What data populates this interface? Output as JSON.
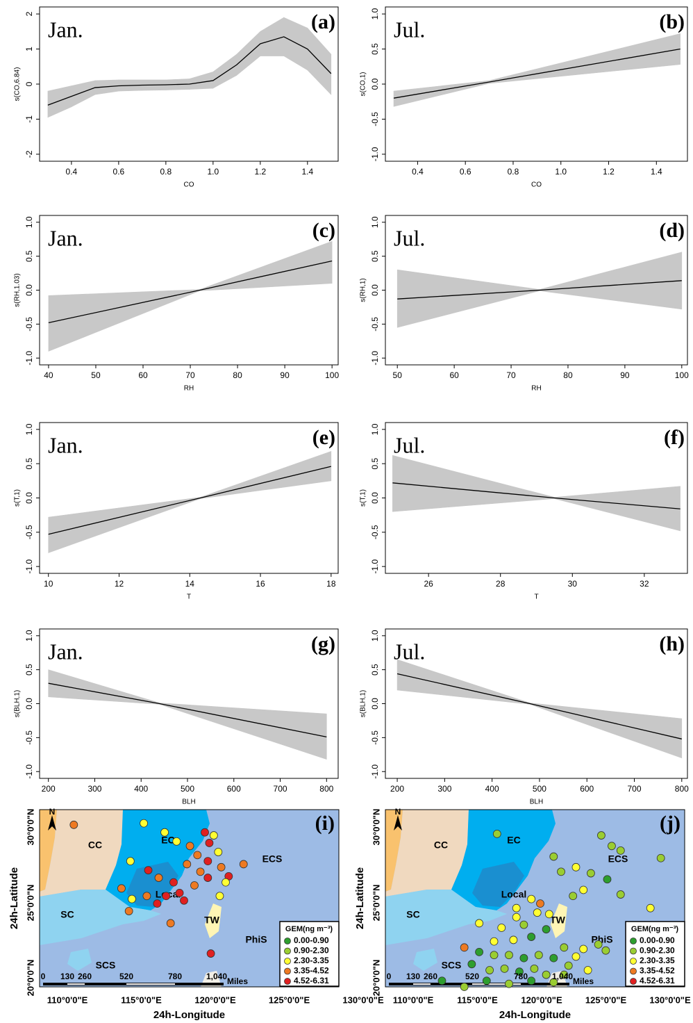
{
  "chart_data": [
    {
      "type": "gam",
      "label": "(a)",
      "month": "Jan.",
      "x_label": "CO",
      "y_label": "s(CO,6.84)",
      "line_color": "#000000",
      "band_color": "#c8c8c8",
      "x": [
        0.3,
        0.4,
        0.5,
        0.6,
        0.7,
        0.8,
        0.9,
        1.0,
        1.1,
        1.2,
        1.3,
        1.4,
        1.5
      ],
      "fit": [
        -0.6,
        -0.35,
        -0.1,
        -0.05,
        -0.03,
        -0.02,
        0,
        0.1,
        0.55,
        1.15,
        1.35,
        1.0,
        0.3
      ],
      "upper": [
        -0.2,
        -0.05,
        0.1,
        0.12,
        0.12,
        0.12,
        0.15,
        0.35,
        0.85,
        1.5,
        1.9,
        1.6,
        0.85
      ],
      "lower": [
        -0.95,
        -0.65,
        -0.3,
        -0.2,
        -0.18,
        -0.17,
        -0.15,
        -0.12,
        0.25,
        0.8,
        0.8,
        0.4,
        -0.3
      ],
      "xlim": [
        0.265,
        1.53
      ],
      "ylim": [
        -2.2,
        2.2
      ],
      "xticks": [
        0.4,
        0.6,
        0.8,
        {
          "value": 1,
          "label": "1.0"
        },
        1.2,
        1.4
      ],
      "yticks": [
        -2,
        -1,
        0,
        1,
        2
      ]
    },
    {
      "type": "gam",
      "label": "(b)",
      "month": "Jul.",
      "x_label": "CO",
      "y_label": "s(CO,1)",
      "line_color": "#000000",
      "band_color": "#c8c8c8",
      "x": [
        0.3,
        0.7,
        1.5
      ],
      "fit": [
        -0.2,
        0.03,
        0.5
      ],
      "upper": [
        -0.1,
        0.05,
        0.72
      ],
      "lower": [
        -0.32,
        0.01,
        0.28
      ],
      "xlim": [
        0.265,
        1.53
      ],
      "ylim": [
        -1.1,
        1.1
      ],
      "xticks": [
        0.4,
        0.6,
        0.8,
        {
          "value": 1,
          "label": "1.0"
        },
        1.2,
        1.4
      ],
      "yticks": [
        {
          "value": -1,
          "label": "-1.0"
        },
        -0.5,
        {
          "value": 0,
          "label": "0.0"
        },
        0.5,
        {
          "value": 1,
          "label": "1.0"
        }
      ]
    },
    {
      "type": "gam",
      "label": "(c)",
      "month": "Jan.",
      "x_label": "RH",
      "y_label": "s(RH,1.03)",
      "line_color": "#000000",
      "band_color": "#c8c8c8",
      "x": [
        40,
        72,
        100
      ],
      "fit": [
        -0.48,
        0,
        0.43
      ],
      "upper": [
        -0.08,
        0.01,
        0.72
      ],
      "lower": [
        -0.9,
        -0.01,
        0.1
      ],
      "xlim": [
        38.1,
        101.3
      ],
      "ylim": [
        -1.1,
        1.1
      ],
      "xticks": [
        40,
        50,
        60,
        70,
        80,
        90,
        100
      ],
      "yticks": [
        {
          "value": -1,
          "label": "-1.0"
        },
        -0.5,
        {
          "value": 0,
          "label": "0.0"
        },
        0.5,
        {
          "value": 1,
          "label": "1.0"
        }
      ]
    },
    {
      "type": "gam",
      "label": "(d)",
      "month": "Jul.",
      "x_label": "RH",
      "y_label": "s(RH,1)",
      "line_color": "#000000",
      "band_color": "#c8c8c8",
      "x": [
        50,
        75,
        100
      ],
      "fit": [
        -0.13,
        0,
        0.14
      ],
      "upper": [
        0.3,
        0.01,
        0.56
      ],
      "lower": [
        -0.55,
        -0.01,
        -0.28
      ],
      "xlim": [
        47.9,
        101
      ],
      "ylim": [
        -1.1,
        1.1
      ],
      "xticks": [
        50,
        60,
        70,
        80,
        90,
        100
      ],
      "yticks": [
        {
          "value": -1,
          "label": "-1.0"
        },
        -0.5,
        {
          "value": 0,
          "label": "0.0"
        },
        0.5,
        {
          "value": 1,
          "label": "1.0"
        }
      ]
    },
    {
      "type": "gam",
      "label": "(e)",
      "month": "Jan.",
      "x_label": "T",
      "y_label": "s(T,1)",
      "line_color": "#000000",
      "band_color": "#c8c8c8",
      "x": [
        10,
        14.3,
        18
      ],
      "fit": [
        -0.53,
        0,
        0.46
      ],
      "upper": [
        -0.28,
        0.01,
        0.68
      ],
      "lower": [
        -0.8,
        -0.01,
        0.25
      ],
      "xlim": [
        9.75,
        18.2
      ],
      "ylim": [
        -1.1,
        1.1
      ],
      "xticks": [
        10,
        12,
        14,
        16,
        18
      ],
      "yticks": [
        {
          "value": -1,
          "label": "-1.0"
        },
        -0.5,
        {
          "value": 0,
          "label": "0.0"
        },
        0.5,
        {
          "value": 1,
          "label": "1.0"
        }
      ]
    },
    {
      "type": "gam",
      "label": "(f)",
      "month": "Jul.",
      "x_label": "T",
      "y_label": "s(T,1)",
      "line_color": "#000000",
      "band_color": "#c8c8c8",
      "x": [
        25,
        29.5,
        33
      ],
      "fit": [
        0.22,
        0,
        -0.16
      ],
      "upper": [
        0.62,
        0.01,
        0.17
      ],
      "lower": [
        -0.2,
        -0.01,
        -0.48
      ],
      "xlim": [
        24.8,
        33.2
      ],
      "ylim": [
        -1.1,
        1.1
      ],
      "xticks": [
        26,
        28,
        30,
        32
      ],
      "yticks": [
        {
          "value": -1,
          "label": "-1.0"
        },
        -0.5,
        {
          "value": 0,
          "label": "0.0"
        },
        0.5,
        {
          "value": 1,
          "label": "1.0"
        }
      ]
    },
    {
      "type": "gam",
      "label": "(g)",
      "month": "Jan.",
      "x_label": "BLH",
      "y_label": "s(BLH,1)",
      "line_color": "#000000",
      "band_color": "#c8c8c8",
      "x": [
        200,
        440,
        800
      ],
      "fit": [
        0.3,
        0,
        -0.49
      ],
      "upper": [
        0.5,
        0.01,
        -0.15
      ],
      "lower": [
        0.1,
        -0.01,
        -0.82
      ],
      "xlim": [
        181,
        825
      ],
      "ylim": [
        -1.1,
        1.1
      ],
      "xticks": [
        200,
        300,
        400,
        500,
        600,
        700,
        800
      ],
      "yticks": [
        {
          "value": -1,
          "label": "-1.0"
        },
        -0.5,
        {
          "value": 0,
          "label": "0.0"
        },
        0.5,
        {
          "value": 1,
          "label": "1.0"
        }
      ]
    },
    {
      "type": "gam",
      "label": "(h)",
      "month": "Jul.",
      "x_label": "BLH",
      "y_label": "s(BLH,1)",
      "line_color": "#000000",
      "band_color": "#c8c8c8",
      "x": [
        200,
        480,
        800
      ],
      "fit": [
        0.44,
        0,
        -0.52
      ],
      "upper": [
        0.65,
        0.01,
        -0.22
      ],
      "lower": [
        0.2,
        -0.01,
        -0.8
      ],
      "xlim": [
        175,
        812
      ],
      "ylim": [
        -1.1,
        1.1
      ],
      "xticks": [
        200,
        300,
        400,
        500,
        600,
        700,
        800
      ],
      "yticks": [
        {
          "value": -1,
          "label": "-1.0"
        },
        -0.5,
        {
          "value": 0,
          "label": "0.0"
        },
        0.5,
        {
          "value": 1,
          "label": "1.0"
        }
      ]
    },
    {
      "type": "map",
      "label": "(i)",
      "x_label": "24h-Longitude",
      "y_label": "24h-Latitude",
      "xtick_labels": [
        "110°0'0\"E",
        "115°0'0\"E",
        "120°0'0\"E",
        "125°0'0\"E",
        "130°0'0\"E"
      ],
      "ytick_labels": [
        "20°0'0\"N",
        "25°0'0\"N",
        "30°0'0\"N"
      ],
      "xlim": [
        108.2,
        128.3
      ],
      "ylim": [
        19.4,
        31.1
      ],
      "regions": [
        "CC",
        "EC",
        "ECS",
        "Local",
        "SC",
        "TW",
        "PhiS",
        "SCS"
      ],
      "north": "N",
      "scale_labels": [
        "0",
        "130",
        "260",
        "520",
        "780",
        "1,040"
      ],
      "scale_unit": "Miles",
      "legend": {
        "title": "GEM(ng m⁻³)",
        "labels": [
          "0.00-0.90",
          "0.90-2.30",
          "2.30-3.35",
          "3.35-4.52",
          "4.52-6.31"
        ],
        "colors": [
          "#2e9e2e",
          "#9acd32",
          "#ffff33",
          "#ee7a22",
          "#e02020"
        ]
      },
      "lon": [
        110.5,
        115.2,
        116.6,
        119.3,
        117.4,
        118.3,
        119.6,
        120.2,
        114.3,
        121.9,
        120.9,
        120.7,
        119.0,
        118.1,
        116.2,
        117.2,
        117.6,
        118.6,
        119.5,
        116.7,
        115.5,
        115.4,
        113.7,
        114.2,
        114.4,
        117.0,
        120.3,
        119.5,
        118.8,
        119.9,
        119.7,
        116.1,
        117.9,
        120.4
      ],
      "lat": [
        30.1,
        30.2,
        29.6,
        29.6,
        29.0,
        28.7,
        28.9,
        28.3,
        27.7,
        27.5,
        26.7,
        26.3,
        27.0,
        27.5,
        26.6,
        26.3,
        25.6,
        26.1,
        26.6,
        25.4,
        27.1,
        25.4,
        25.9,
        24.4,
        25.2,
        23.6,
        25.4,
        27.7,
        28.1,
        29.4,
        21.6,
        24.9,
        25.1,
        27.3
      ],
      "class": [
        3,
        2,
        2,
        4,
        2,
        3,
        4,
        2,
        2,
        3,
        4,
        2,
        3,
        3,
        3,
        4,
        4,
        3,
        4,
        4,
        4,
        3,
        3,
        3,
        2,
        3,
        2,
        4,
        3,
        2,
        4,
        4,
        4,
        3
      ]
    },
    {
      "type": "map",
      "label": "(j)",
      "x_label": "24h-Longitude",
      "y_label": "24h-Latitude",
      "xtick_labels": [
        "110°0'0\"E",
        "115°0'0\"E",
        "120°0'0\"E",
        "125°0'0\"E",
        "130°0'0\"E"
      ],
      "ytick_labels": [
        "20°0'0\"N",
        "25°0'0\"N",
        "30°0'0\"N"
      ],
      "xlim": [
        108.2,
        128.3
      ],
      "ylim": [
        19.4,
        31.1
      ],
      "regions": [
        "CC",
        "EC",
        "ECS",
        "Local",
        "SC",
        "TW",
        "PhiS",
        "SCS"
      ],
      "north": "N",
      "scale_labels": [
        "0",
        "130",
        "260",
        "520",
        "780",
        "1,040"
      ],
      "scale_unit": "Miles",
      "legend": {
        "title": "GEM(ng m⁻³)",
        "labels": [
          "0.00-0.90",
          "0.90-2.30",
          "2.30-3.35",
          "3.35-4.52",
          "4.52-6.31"
        ],
        "colors": [
          "#2e9e2e",
          "#9acd32",
          "#ffff33",
          "#ee7a22",
          "#e02020"
        ]
      },
      "lon": [
        115.7,
        122.7,
        123.4,
        124.0,
        126.7,
        119.5,
        121.0,
        120.0,
        122.0,
        123.1,
        121.5,
        124.0,
        120.8,
        118.0,
        117.0,
        118.4,
        119.2,
        114.5,
        116.0,
        117.5,
        119.0,
        116.8,
        118.0,
        120.2,
        121.5,
        122.5,
        123.0,
        113.5,
        114.5,
        115.5,
        116.5,
        117.5,
        118.5,
        119.5,
        120.5,
        121.0,
        114.0,
        115.2,
        116.2,
        117.2,
        118.2,
        119.0,
        120.2,
        121.8,
        115.0,
        116.5,
        118.0,
        119.5,
        112.0,
        113.5,
        117.0,
        118.6,
        126.0,
        115.5
      ],
      "lat": [
        29.5,
        29.4,
        28.7,
        28.4,
        27.9,
        28.0,
        27.3,
        27.0,
        26.9,
        26.5,
        25.8,
        25.5,
        25.4,
        25.2,
        24.6,
        24.3,
        24.2,
        23.6,
        23.3,
        23.5,
        23.2,
        22.5,
        22.7,
        22.0,
        21.9,
        22.2,
        21.8,
        22.0,
        21.7,
        21.5,
        21.5,
        21.3,
        21.5,
        21.3,
        20.8,
        21.4,
        20.9,
        20.5,
        20.6,
        20.4,
        20.6,
        20.2,
        20.2,
        20.5,
        19.8,
        19.6,
        19.8,
        19.7,
        19.8,
        19.4,
        24.0,
        24.9,
        24.6,
        22.4
      ],
      "class": [
        1,
        1,
        1,
        1,
        1,
        1,
        2,
        1,
        1,
        0,
        2,
        1,
        1,
        2,
        2,
        2,
        2,
        2,
        2,
        1,
        0,
        2,
        0,
        1,
        2,
        1,
        1,
        3,
        0,
        1,
        1,
        0,
        1,
        0,
        1,
        2,
        0,
        1,
        1,
        0,
        1,
        1,
        1,
        2,
        0,
        1,
        0,
        1,
        0,
        1,
        2,
        3,
        2,
        2
      ]
    }
  ]
}
